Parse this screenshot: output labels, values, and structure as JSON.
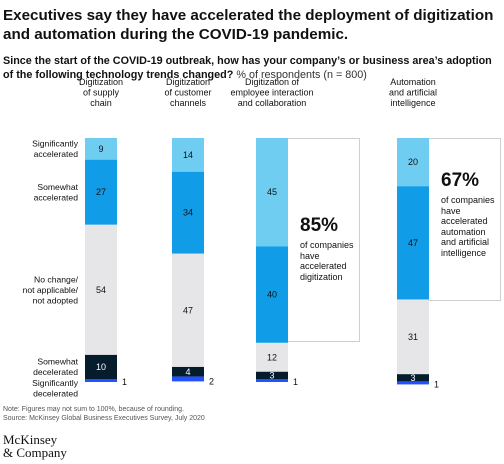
{
  "title": "Executives say they have accelerated the deployment of digitization and automation during the COVID-19 pandemic.",
  "question": "Since the start of the COVID-19 outbreak, how has your company’s or business area’s adoption of the following technology trends changed?",
  "unit": "% of respondents (n = 800)",
  "footnote_1": "Note: Figures may not sum to 100%, because of rounding.",
  "footnote_2": "Source: McKinsey Global Business Executives Survey, July 2020",
  "logo_line_1": "McKinsey",
  "logo_line_2": "& Company",
  "colors": {
    "significantly_accelerated": "#6fcdf2",
    "somewhat_accelerated": "#109ce6",
    "no_change": "#e6e6e8",
    "somewhat_decelerated": "#051c2c",
    "significantly_decelerated": "#2251ff"
  },
  "chart_data": {
    "type": "bar",
    "stacked": true,
    "unit": "% of respondents",
    "categories": [
      "Digitization of supply chain",
      "Digitization of customer channels",
      "Digitization of employee interaction and collaboration",
      "Automation and artificial intelligence"
    ],
    "category_labels": [
      [
        "Digitization",
        "of supply",
        "chain"
      ],
      [
        "Digitization",
        "of customer",
        "channels"
      ],
      [
        "Digitization of",
        "employee interaction",
        "and collaboration"
      ],
      [
        "Automation",
        "and artificial",
        "intelligence"
      ]
    ],
    "series": [
      {
        "name": "Significantly accelerated",
        "label_lines": [
          "Significantly",
          "accelerated"
        ],
        "color": "#6fcdf2",
        "values": [
          9,
          14,
          45,
          20
        ]
      },
      {
        "name": "Somewhat accelerated",
        "label_lines": [
          "Somewhat",
          "accelerated"
        ],
        "color": "#109ce6",
        "values": [
          27,
          34,
          40,
          47
        ]
      },
      {
        "name": "No change/not applicable/not adopted",
        "label_lines": [
          "No change/",
          "not applicable/",
          "not adopted"
        ],
        "color": "#e6e6e8",
        "values": [
          54,
          47,
          12,
          31
        ]
      },
      {
        "name": "Somewhat decelerated",
        "label_lines": [
          "Somewhat",
          "decelerated"
        ],
        "color": "#051c2c",
        "values": [
          10,
          4,
          3,
          3
        ]
      },
      {
        "name": "Significantly decelerated",
        "label_lines": [
          "Significantly",
          "decelerated"
        ],
        "color": "#2251ff",
        "values": [
          1,
          2,
          1,
          1
        ]
      }
    ],
    "callouts": [
      {
        "category": "Digitization of employee interaction and collaboration",
        "value": "85%",
        "text": "of companies\nhave\naccelerated\ndigitization"
      },
      {
        "category": "Automation and artificial intelligence",
        "value": "67%",
        "text": "of companies\nhave\naccelerated\nautomation\nand artificial\nintelligence"
      }
    ]
  }
}
